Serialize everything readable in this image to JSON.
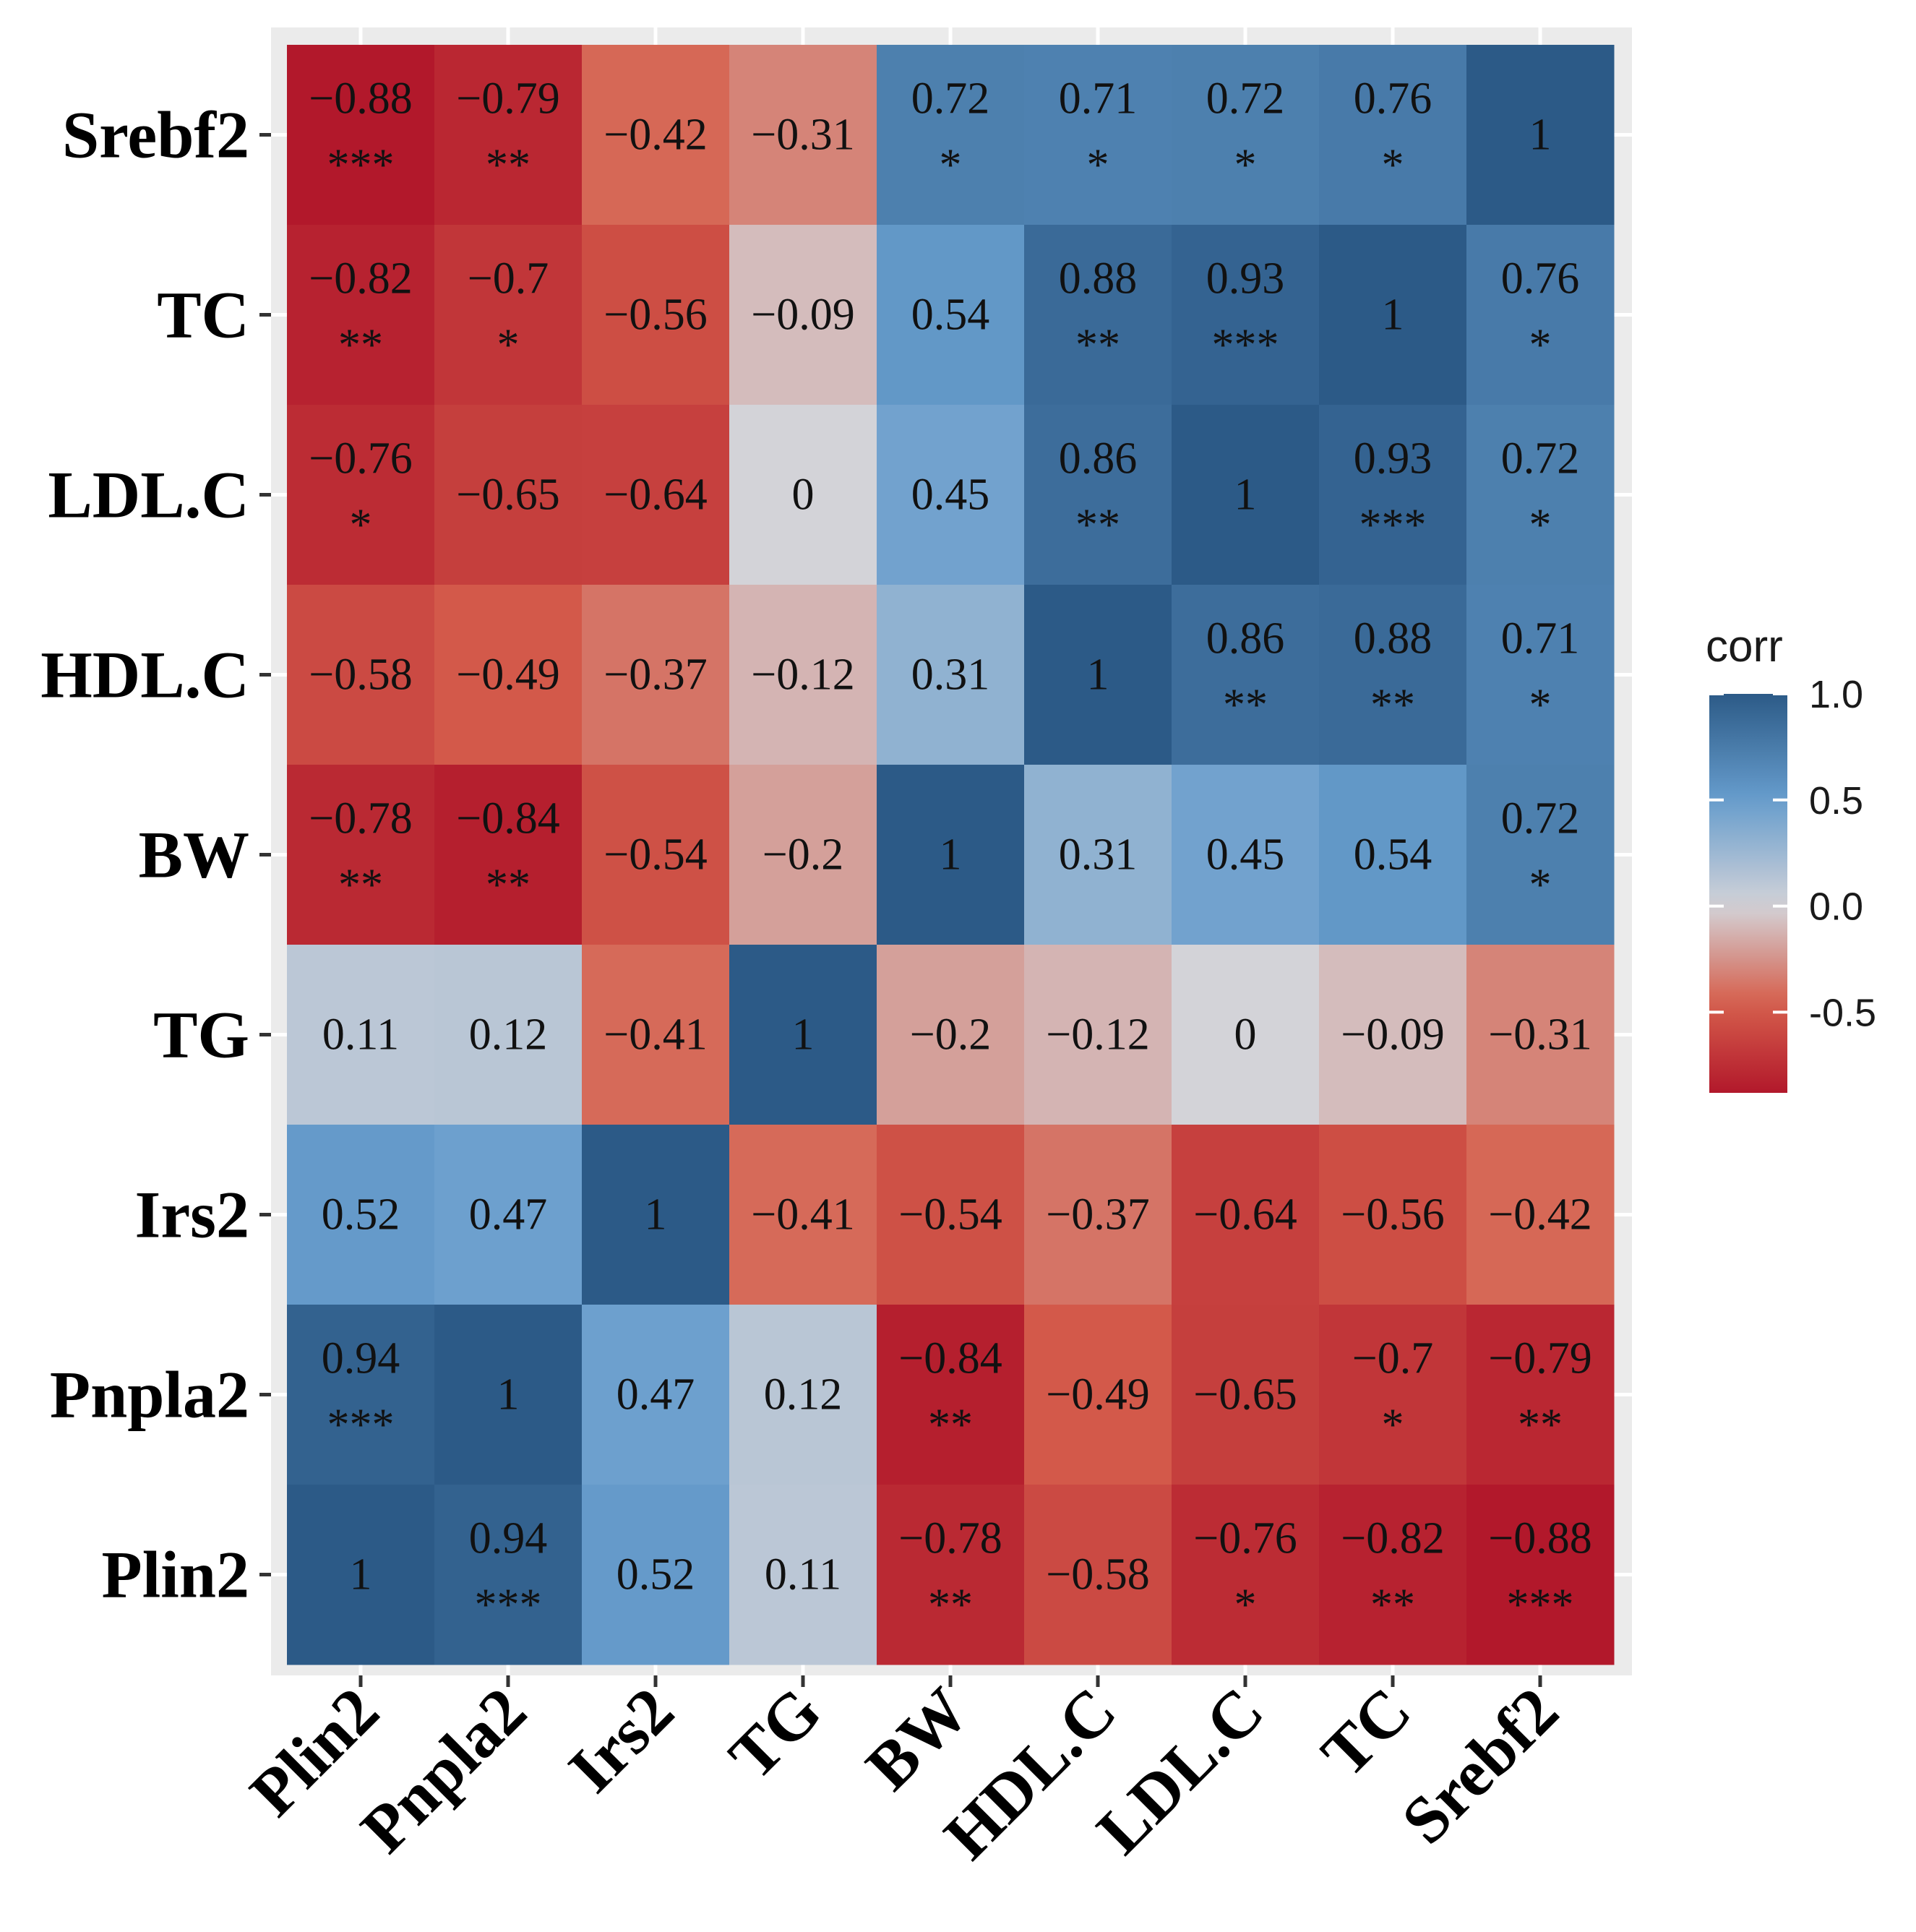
{
  "chart_data": {
    "type": "heatmap",
    "title": "",
    "xlabel": "",
    "ylabel": "",
    "x_labels": [
      "Plin2",
      "Pnpla2",
      "Irs2",
      "TG",
      "BW",
      "HDL.C",
      "LDL.C",
      "TC",
      "Srebf2"
    ],
    "y_labels_top_to_bottom": [
      "Srebf2",
      "TC",
      "LDL.C",
      "HDL.C",
      "BW",
      "TG",
      "Irs2",
      "Pnpla2",
      "Plin2"
    ],
    "values": [
      [
        -0.88,
        -0.79,
        -0.42,
        -0.31,
        0.72,
        0.71,
        0.72,
        0.76,
        1
      ],
      [
        -0.82,
        -0.7,
        -0.56,
        -0.09,
        0.54,
        0.88,
        0.93,
        1,
        0.76
      ],
      [
        -0.76,
        -0.65,
        -0.64,
        0,
        0.45,
        0.86,
        1,
        0.93,
        0.72
      ],
      [
        -0.58,
        -0.49,
        -0.37,
        -0.12,
        0.31,
        1,
        0.86,
        0.88,
        0.71
      ],
      [
        -0.78,
        -0.84,
        -0.54,
        -0.2,
        1,
        0.31,
        0.45,
        0.54,
        0.72
      ],
      [
        0.11,
        0.12,
        -0.41,
        1,
        -0.2,
        -0.12,
        0,
        -0.09,
        -0.31
      ],
      [
        0.52,
        0.47,
        1,
        -0.41,
        -0.54,
        -0.37,
        -0.64,
        -0.56,
        -0.42
      ],
      [
        0.94,
        1,
        0.47,
        0.12,
        -0.84,
        -0.49,
        -0.65,
        -0.7,
        -0.79
      ],
      [
        1,
        0.94,
        0.52,
        0.11,
        -0.78,
        -0.58,
        -0.76,
        -0.82,
        -0.88
      ]
    ],
    "labels": [
      [
        "−0.88",
        "−0.79",
        "−0.42",
        "−0.31",
        "0.72",
        "0.71",
        "0.72",
        "0.76",
        "1"
      ],
      [
        "−0.82",
        "−0.7",
        "−0.56",
        "−0.09",
        "0.54",
        "0.88",
        "0.93",
        "1",
        "0.76"
      ],
      [
        "−0.76",
        "−0.65",
        "−0.64",
        "0",
        "0.45",
        "0.86",
        "1",
        "0.93",
        "0.72"
      ],
      [
        "−0.58",
        "−0.49",
        "−0.37",
        "−0.12",
        "0.31",
        "1",
        "0.86",
        "0.88",
        "0.71"
      ],
      [
        "−0.78",
        "−0.84",
        "−0.54",
        "−0.2",
        "1",
        "0.31",
        "0.45",
        "0.54",
        "0.72"
      ],
      [
        "0.11",
        "0.12",
        "−0.41",
        "1",
        "−0.2",
        "−0.12",
        "0",
        "−0.09",
        "−0.31"
      ],
      [
        "0.52",
        "0.47",
        "1",
        "−0.41",
        "−0.54",
        "−0.37",
        "−0.64",
        "−0.56",
        "−0.42"
      ],
      [
        "0.94",
        "1",
        "0.47",
        "0.12",
        "−0.84",
        "−0.49",
        "−0.65",
        "−0.7",
        "−0.79"
      ],
      [
        "1",
        "0.94",
        "0.52",
        "0.11",
        "−0.78",
        "−0.58",
        "−0.76",
        "−0.82",
        "−0.88"
      ]
    ],
    "significance": [
      [
        "***",
        "**",
        "",
        "",
        "*",
        "*",
        "*",
        "*",
        ""
      ],
      [
        "**",
        "*",
        "",
        "",
        "",
        "**",
        "***",
        "",
        "*"
      ],
      [
        "*",
        "",
        "",
        "",
        "",
        "**",
        "",
        "***",
        "*"
      ],
      [
        "",
        "",
        "",
        "",
        "",
        "",
        "**",
        "**",
        "*"
      ],
      [
        "**",
        "**",
        "",
        "",
        "",
        "",
        "",
        "",
        "*"
      ],
      [
        "",
        "",
        "",
        "",
        "",
        "",
        "",
        "",
        ""
      ],
      [
        "",
        "",
        "",
        "",
        "",
        "",
        "",
        "",
        ""
      ],
      [
        "***",
        "",
        "",
        "",
        "**",
        "",
        "",
        "*",
        "**"
      ],
      [
        "",
        "***",
        "",
        "",
        "**",
        "",
        "*",
        "**",
        "***"
      ]
    ],
    "legend": {
      "title": "corr",
      "position": "right",
      "range": [
        -0.88,
        1.0
      ],
      "ticks": [
        1.0,
        0.5,
        0.0,
        -0.5
      ],
      "tick_labels": [
        "1.0",
        "0.5",
        "0.0",
        "-0.5"
      ]
    },
    "colors": {
      "low": "#b2182b",
      "mid": "#d3d3d8",
      "high": "#2c5a87",
      "panel_background": "#ebebeb",
      "gridline": "#ffffff"
    }
  }
}
